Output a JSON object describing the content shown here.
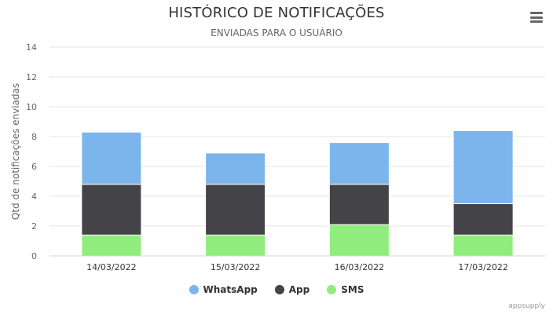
{
  "chart_data": {
    "type": "bar",
    "stacked": true,
    "title": "HISTÓRICO DE NOTIFICAÇÕES",
    "subtitle": "ENVIADAS PARA O USUÁRIO",
    "xlabel": "",
    "ylabel": "Qtd de notificações enviadas",
    "ylim": [
      0,
      14
    ],
    "yticks": [
      0,
      2,
      4,
      6,
      8,
      10,
      12,
      14
    ],
    "grid": true,
    "legend_position": "bottom-center",
    "categories": [
      "14/03/2022",
      "15/03/2022",
      "16/03/2022",
      "17/03/2022"
    ],
    "series": [
      {
        "name": "WhatsApp",
        "color": "#7cb5ec",
        "values": [
          3.5,
          2.1,
          2.8,
          4.9
        ]
      },
      {
        "name": "App",
        "color": "#434348",
        "values": [
          3.4,
          3.4,
          2.7,
          2.1
        ]
      },
      {
        "name": "SMS",
        "color": "#90ed7d",
        "values": [
          1.4,
          1.4,
          2.1,
          1.4
        ]
      }
    ]
  },
  "credits": "appsupply",
  "menu_icon": "hamburger-menu-icon"
}
